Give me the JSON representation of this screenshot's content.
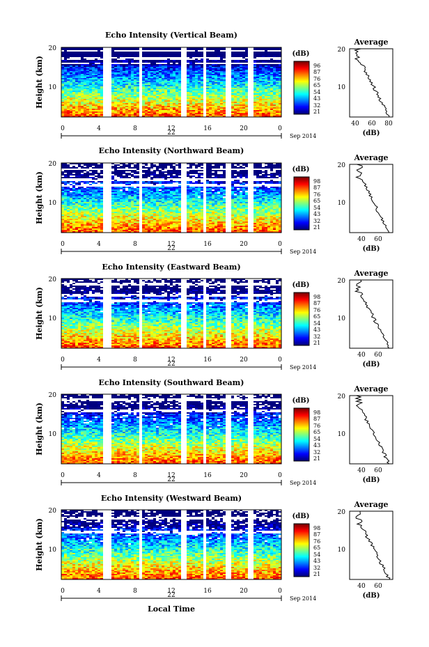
{
  "chart_data": [
    {
      "type": "heatmap",
      "title": "Echo Intensity (Vertical Beam)",
      "ylabel": "Height (km)",
      "y_ticks": [
        "20",
        "10"
      ],
      "x_ticks": [
        "0",
        "4",
        "8",
        "12",
        "16",
        "20",
        "0"
      ],
      "date_day": "22",
      "date_month": "Sep 2014",
      "colorbar": {
        "unit": "(dB)",
        "ticks": [
          "96",
          "87",
          "76",
          "65",
          "54",
          "43",
          "32",
          "21"
        ],
        "range": [
          21,
          96
        ]
      },
      "profile": {
        "title": "Average",
        "y_ticks": [
          "20",
          "10"
        ],
        "x_ticks": [
          "40",
          "60",
          "80"
        ],
        "xlabel": "(dB)",
        "xlim": [
          30,
          84
        ]
      }
    },
    {
      "type": "heatmap",
      "title": "Echo Intensity (Northward Beam)",
      "ylabel": "Height (km)",
      "y_ticks": [
        "20",
        "10"
      ],
      "x_ticks": [
        "0",
        "4",
        "8",
        "12",
        "16",
        "20",
        "0"
      ],
      "date_day": "22",
      "date_month": "Sep 2014",
      "colorbar": {
        "unit": "(dB)",
        "ticks": [
          "98",
          "87",
          "76",
          "65",
          "54",
          "43",
          "32",
          "21"
        ],
        "range": [
          21,
          98
        ]
      },
      "profile": {
        "title": "Average",
        "y_ticks": [
          "20",
          "10"
        ],
        "x_ticks": [
          "40",
          "60"
        ],
        "xlabel": "(dB)",
        "xlim": [
          24,
          76
        ]
      }
    },
    {
      "type": "heatmap",
      "title": "Echo Intensity (Eastward Beam)",
      "ylabel": "Height (km)",
      "y_ticks": [
        "20",
        "10"
      ],
      "x_ticks": [
        "0",
        "4",
        "8",
        "12",
        "16",
        "20",
        "0"
      ],
      "date_day": "22",
      "date_month": "Sep 2014",
      "colorbar": {
        "unit": "(dB)",
        "ticks": [
          "98",
          "87",
          "76",
          "65",
          "54",
          "43",
          "32",
          "21"
        ],
        "range": [
          21,
          98
        ]
      },
      "profile": {
        "title": "Average",
        "y_ticks": [
          "20",
          "10"
        ],
        "x_ticks": [
          "40",
          "60"
        ],
        "xlabel": "(dB)",
        "xlim": [
          24,
          76
        ]
      }
    },
    {
      "type": "heatmap",
      "title": "Echo Intensity (Southward Beam)",
      "ylabel": "Height (km)",
      "y_ticks": [
        "20",
        "10"
      ],
      "x_ticks": [
        "0",
        "4",
        "8",
        "12",
        "16",
        "20",
        "0"
      ],
      "date_day": "22",
      "date_month": "Sep 2014",
      "colorbar": {
        "unit": "(dB)",
        "ticks": [
          "98",
          "87",
          "76",
          "65",
          "54",
          "43",
          "32",
          "21"
        ],
        "range": [
          21,
          98
        ]
      },
      "profile": {
        "title": "Average",
        "y_ticks": [
          "20",
          "10"
        ],
        "x_ticks": [
          "40",
          "60"
        ],
        "xlabel": "(dB)",
        "xlim": [
          24,
          76
        ]
      }
    },
    {
      "type": "heatmap",
      "title": "Echo Intensity (Westward Beam)",
      "ylabel": "Height (km)",
      "y_ticks": [
        "20",
        "10"
      ],
      "x_ticks": [
        "0",
        "4",
        "8",
        "12",
        "16",
        "20",
        "0"
      ],
      "date_day": "22",
      "date_month": "Sep 2014",
      "colorbar": {
        "unit": "(dB)",
        "ticks": [
          "98",
          "87",
          "76",
          "65",
          "54",
          "43",
          "32",
          "21"
        ],
        "range": [
          21,
          98
        ]
      },
      "profile": {
        "title": "Average",
        "y_ticks": [
          "20",
          "10"
        ],
        "x_ticks": [
          "40",
          "60"
        ],
        "xlabel": "(dB)",
        "xlim": [
          24,
          76
        ]
      }
    }
  ],
  "xlabel": "Local Time"
}
